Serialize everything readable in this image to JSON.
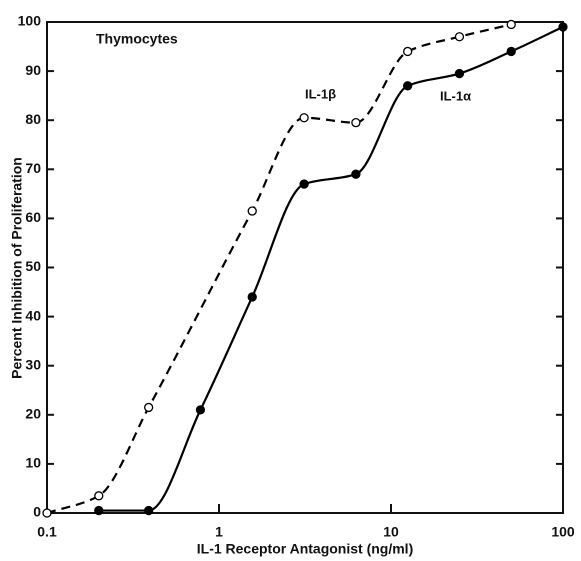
{
  "chart_data": {
    "type": "scatter",
    "title": "Thymocytes",
    "xlabel": "IL-1 Receptor Antagonist (ng/ml)",
    "ylabel": "Percent Inhibition of Proliferation",
    "xscale": "log",
    "xlim": [
      0.1,
      100
    ],
    "xticks": [
      0.1,
      1,
      10,
      100
    ],
    "ylim": [
      0,
      100
    ],
    "yticks": [
      0,
      10,
      20,
      30,
      40,
      50,
      60,
      70,
      80,
      90,
      100
    ],
    "series": [
      {
        "name": "IL-1β",
        "color": "#000000",
        "marker": "open",
        "line": "dashed",
        "x": [
          0.1,
          0.2,
          0.39,
          1.56,
          3.125,
          6.25,
          12.5,
          25,
          50
        ],
        "values": [
          0,
          3.5,
          21.5,
          61.5,
          80.5,
          79.5,
          94,
          97,
          99.5
        ]
      },
      {
        "name": "IL-1α",
        "color": "#000000",
        "marker": "filled",
        "line": "solid",
        "x": [
          0.2,
          0.39,
          0.78,
          1.56,
          3.125,
          6.25,
          12.5,
          25,
          50,
          100
        ],
        "values": [
          0.5,
          0.5,
          21,
          44,
          67,
          69,
          87,
          89.5,
          94,
          99
        ]
      }
    ]
  }
}
